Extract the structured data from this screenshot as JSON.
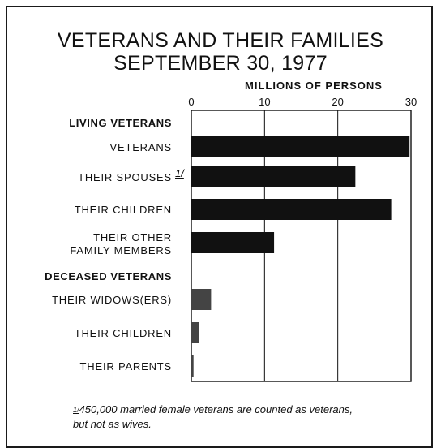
{
  "chart_data": {
    "type": "bar",
    "orientation": "horizontal",
    "title": "VETERANS AND THEIR FAMILIES",
    "subtitle": "SEPTEMBER 30, 1977",
    "xlabel": "MILLIONS OF PERSONS",
    "xlim": [
      0,
      30
    ],
    "xticks": [
      "0",
      "10",
      "20",
      "30"
    ],
    "grid": true,
    "groups": [
      {
        "name": "LIVING VETERANS",
        "categories": [
          {
            "label_lines": [
              "VETERANS"
            ],
            "value": 29.8
          },
          {
            "label_lines": [
              "THEIR SPOUSES"
            ],
            "footnote_mark": "1/",
            "value": 22.4
          },
          {
            "label_lines": [
              "THEIR CHILDREN"
            ],
            "value": 27.3
          },
          {
            "label_lines": [
              "THEIR OTHER",
              "FAMILY MEMBERS"
            ],
            "value": 11.3
          }
        ]
      },
      {
        "name": "DECEASED VETERANS",
        "categories": [
          {
            "label_lines": [
              "THEIR WIDOWS(ERS)"
            ],
            "value": 2.7
          },
          {
            "label_lines": [
              "THEIR CHILDREN"
            ],
            "value": 1.0
          },
          {
            "label_lines": [
              "THEIR PARENTS"
            ],
            "value": 0.3
          }
        ]
      }
    ],
    "colors": {
      "living": "#111111",
      "deceased": "#444444"
    }
  },
  "footnote": {
    "mark": "1/",
    "line1": "450,000 married female veterans are counted as veterans,",
    "line2": "but not as wives."
  }
}
